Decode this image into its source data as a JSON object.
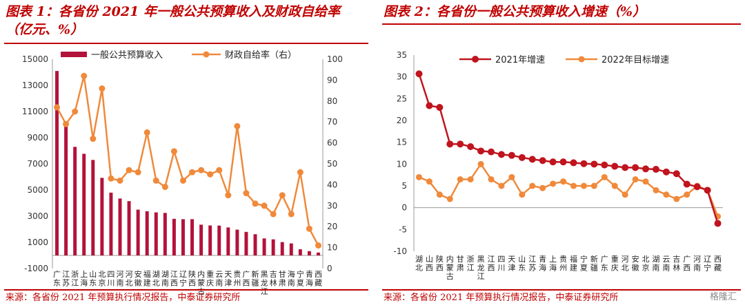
{
  "left": {
    "title": "图表 1：各省份 2021 年一般公共预算收入及财政自给率（亿元、%）",
    "source": "来源：各省份 2021 年预算执行情况报告，中泰证券研究所"
  },
  "right": {
    "title": "图表 2：各省份一般公共预算收入增速（%）",
    "source": "来源：各省份 2021 年预算执行情况报告，中泰证券研究所"
  },
  "watermark": "格隆汇",
  "colors": {
    "title": "#c00000",
    "bar": "#b3123a",
    "line_orange": "#f0893a",
    "line_red": "#c0141e"
  },
  "chart_data": [
    {
      "type": "bar",
      "categories": [
        "广东",
        "江苏",
        "浙江",
        "上海",
        "山东",
        "北京",
        "四川",
        "河南",
        "河北",
        "安徽",
        "福建",
        "湖北",
        "湖南",
        "江西",
        "辽宁",
        "陕西",
        "内蒙古",
        "重庆",
        "云南",
        "天津",
        "贵州",
        "广西",
        "新疆",
        "黑龙江",
        "吉林",
        "甘肃",
        "海南",
        "宁夏",
        "青海",
        "西藏"
      ],
      "category_glyphs": [
        [
          "广",
          "东"
        ],
        [
          "江",
          "苏"
        ],
        [
          "浙",
          "江"
        ],
        [
          "上",
          "海"
        ],
        [
          "山",
          "东"
        ],
        [
          "北",
          "京"
        ],
        [
          "四",
          "川"
        ],
        [
          "河",
          "南"
        ],
        [
          "河",
          "北"
        ],
        [
          "安",
          "徽"
        ],
        [
          "福",
          "建"
        ],
        [
          "湖",
          "北"
        ],
        [
          "湖",
          "南"
        ],
        [
          "江",
          "西"
        ],
        [
          "辽",
          "宁"
        ],
        [
          "陕",
          "西"
        ],
        [
          "内",
          "蒙",
          "古"
        ],
        [
          "重",
          "庆"
        ],
        [
          "云",
          "南"
        ],
        [
          "天",
          "津"
        ],
        [
          "贵",
          "州"
        ],
        [
          "广",
          "西"
        ],
        [
          "新",
          "疆"
        ],
        [
          "黑",
          "龙",
          "江"
        ],
        [
          "吉",
          "林"
        ],
        [
          "甘",
          "肃"
        ],
        [
          "海",
          "南"
        ],
        [
          "宁",
          "夏"
        ],
        [
          "青",
          "海"
        ],
        [
          "西",
          "藏"
        ]
      ],
      "series": [
        {
          "name": "一般公共预算收入",
          "axis": "left",
          "values": [
            14100,
            10000,
            8300,
            7770,
            7300,
            5930,
            4800,
            4350,
            4150,
            3500,
            3380,
            3290,
            3250,
            2800,
            2770,
            2770,
            2350,
            2290,
            2280,
            2140,
            1970,
            1800,
            1620,
            1300,
            1230,
            1020,
            920,
            470,
            330,
            220
          ]
        },
        {
          "name": "财政自给率（右）",
          "axis": "right",
          "values": [
            77,
            69,
            75,
            92,
            62,
            86,
            43,
            42,
            47,
            46,
            65,
            42,
            39,
            56,
            42,
            46,
            47,
            45,
            47,
            35,
            68,
            36,
            31,
            30,
            26,
            35,
            26,
            46,
            19,
            11
          ]
        }
      ],
      "yaxis_left": {
        "min": -1000,
        "max": 15000,
        "ticks": [
          "-1000",
          "1000",
          "3000",
          "5000",
          "7000",
          "9000",
          "11000",
          "13000",
          "15000"
        ]
      },
      "yaxis_right": {
        "min": 0,
        "max": 100,
        "ticks": [
          "0",
          "10",
          "20",
          "30",
          "40",
          "50",
          "60",
          "70",
          "80",
          "90",
          "100"
        ]
      },
      "legend": {
        "position": "top"
      }
    },
    {
      "type": "line",
      "categories": [
        "湖北",
        "山西",
        "陕西",
        "内蒙古",
        "甘肃",
        "浙江",
        "黑龙江",
        "江西",
        "四川",
        "天津",
        "山东",
        "江苏",
        "青海",
        "上海",
        "贵州",
        "福建",
        "宁夏",
        "新疆",
        "广东",
        "重庆",
        "河北",
        "安徽",
        "北京",
        "湖南",
        "云南",
        "吉林",
        "广西",
        "河南",
        "辽宁",
        "西藏"
      ],
      "category_glyphs": [
        [
          "湖",
          "北"
        ],
        [
          "山",
          "西"
        ],
        [
          "陕",
          "西"
        ],
        [
          "内",
          "蒙",
          "古"
        ],
        [
          "甘",
          "肃"
        ],
        [
          "浙",
          "江"
        ],
        [
          "黑",
          "龙",
          "江"
        ],
        [
          "江",
          "西"
        ],
        [
          "四",
          "川"
        ],
        [
          "天",
          "津"
        ],
        [
          "山",
          "东"
        ],
        [
          "江",
          "苏"
        ],
        [
          "青",
          "海"
        ],
        [
          "上",
          "海"
        ],
        [
          "贵",
          "州"
        ],
        [
          "福",
          "建"
        ],
        [
          "宁",
          "夏"
        ],
        [
          "新",
          "疆"
        ],
        [
          "广",
          "东"
        ],
        [
          "重",
          "庆"
        ],
        [
          "河",
          "北"
        ],
        [
          "安",
          "徽"
        ],
        [
          "北",
          "京"
        ],
        [
          "湖",
          "南"
        ],
        [
          "云",
          "南"
        ],
        [
          "吉",
          "林"
        ],
        [
          "广",
          "西"
        ],
        [
          "河",
          "南"
        ],
        [
          "辽",
          "宁"
        ],
        [
          "西",
          "藏"
        ]
      ],
      "series": [
        {
          "name": "2021年增速",
          "values": [
            30.7,
            23.4,
            23.0,
            14.6,
            14.6,
            14.0,
            13.0,
            12.8,
            12.2,
            12.0,
            11.5,
            11.1,
            10.8,
            10.5,
            10.5,
            10.3,
            10.1,
            10.0,
            9.8,
            9.5,
            9.2,
            9.2,
            8.9,
            8.8,
            8.2,
            7.8,
            5.4,
            4.8,
            4.0,
            -3.6
          ]
        },
        {
          "name": "2022年目标增速",
          "values": [
            7,
            6,
            3,
            2,
            6.5,
            6.5,
            10,
            6.5,
            5,
            7,
            3,
            5,
            4.5,
            5.5,
            6,
            5,
            5,
            5,
            7,
            5,
            3,
            6.5,
            6,
            4,
            3,
            2,
            3,
            5,
            4,
            -2
          ]
        }
      ],
      "ylim": [
        -10,
        35
      ],
      "yticks": [
        "-10",
        "-5",
        "0",
        "5",
        "10",
        "15",
        "20",
        "25",
        "30",
        "35"
      ],
      "legend": {
        "position": "top"
      }
    }
  ]
}
